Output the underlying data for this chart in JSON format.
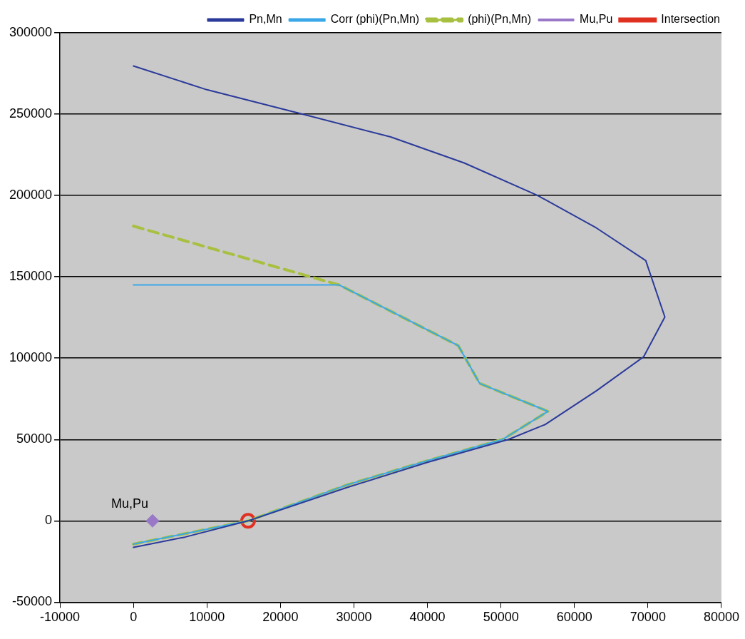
{
  "chart_data": {
    "type": "line",
    "xlim": [
      -10000,
      80000
    ],
    "xticks": [
      -10000,
      0,
      10000,
      20000,
      30000,
      40000,
      50000,
      60000,
      70000,
      80000
    ],
    "ylim": [
      -50000,
      300000
    ],
    "yticks": [
      -50000,
      0,
      50000,
      100000,
      150000,
      200000,
      250000,
      300000
    ],
    "grid": "y",
    "legend": "top right",
    "annotations": [
      {
        "text": "Mu,Pu",
        "x": 2600,
        "y": 0
      }
    ],
    "series": [
      {
        "name": "Pn,Mn",
        "color": "#2b3a9a",
        "marker": "none",
        "line_style": "solid",
        "x": [
          0,
          10000,
          23000,
          35000,
          45000,
          55000,
          63000,
          69700,
          72300,
          69400,
          63000,
          56000,
          51000,
          40000,
          29000,
          15600,
          7000,
          0
        ],
        "values": [
          279600,
          265000,
          250000,
          236000,
          220000,
          200000,
          180000,
          160000,
          125300,
          100800,
          80000,
          59200,
          50000,
          36000,
          20400,
          0,
          -10000,
          -16300
        ]
      },
      {
        "name": "Corr (phi)(Pn,Mn)",
        "color": "#3aa8e8",
        "marker": "none",
        "line_style": "solid",
        "x": [
          0,
          28000,
          44200,
          47100,
          56400,
          50200,
          40000,
          29000,
          15600,
          0
        ],
        "values": [
          145000,
          145000,
          107700,
          84500,
          67300,
          50000,
          37000,
          22000,
          0,
          -14300
        ]
      },
      {
        "name": "(phi)(Pn,Mn)",
        "color": "#a8c040",
        "marker": "none",
        "line_style": "dashed",
        "x": [
          0,
          28000,
          44200,
          47100,
          56400,
          50200,
          40000,
          29000,
          15600,
          0
        ],
        "values": [
          181200,
          145000,
          107700,
          84500,
          67300,
          50000,
          37000,
          22000,
          0,
          -14300
        ]
      },
      {
        "name": "Mu,Pu",
        "type": "scatter",
        "color": "#9a78c8",
        "marker": "diamond",
        "x": [
          2600
        ],
        "values": [
          0
        ]
      },
      {
        "name": "Intersection",
        "type": "scatter",
        "color": "#e03020",
        "marker": "circle",
        "x": [
          15600
        ],
        "values": [
          0
        ]
      }
    ]
  }
}
